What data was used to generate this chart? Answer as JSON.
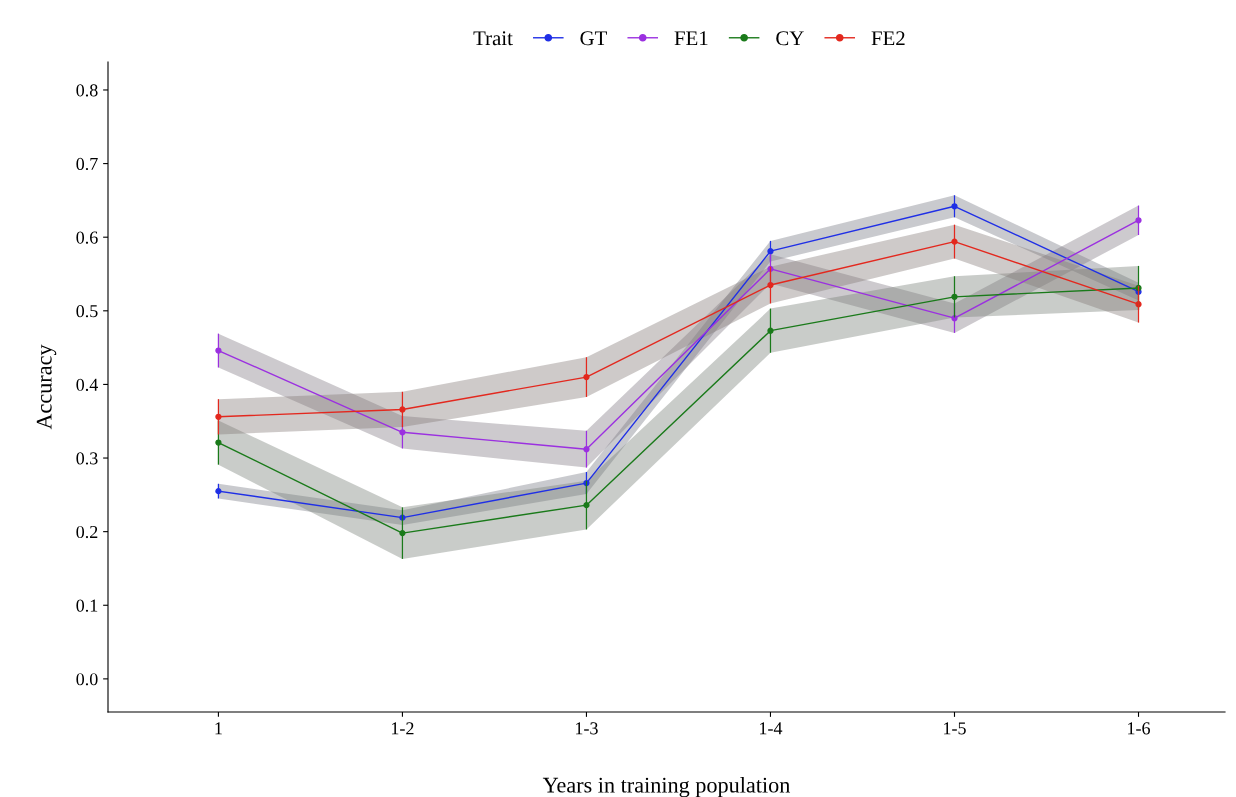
{
  "chart_data": {
    "type": "line",
    "xlabel": "Years in training population",
    "ylabel": "Accuracy",
    "legend_title": "Trait",
    "legend": "top",
    "categories": [
      "1",
      "1-2",
      "1-3",
      "1-4",
      "1-5",
      "1-6"
    ],
    "ylim": [
      -0.045,
      0.838
    ],
    "yticks": [
      {
        "value": 0,
        "label": "0.0"
      },
      0.1,
      0.2,
      0.3,
      0.4,
      0.5,
      0.6,
      0.7,
      0.8
    ],
    "grid": false,
    "marker": "circle",
    "line_style": "solid",
    "series": [
      {
        "name": "GT",
        "color": "#1f2fe6",
        "values": [
          0.255,
          0.219,
          0.266,
          0.581,
          0.642,
          0.526
        ],
        "errors": [
          0.01,
          null,
          0.015,
          0.014,
          0.015,
          null
        ],
        "lower": [
          0.245,
          0.209,
          0.251,
          0.567,
          0.627,
          0.514
        ],
        "upper": [
          0.265,
          0.229,
          0.281,
          0.595,
          0.657,
          0.538
        ]
      },
      {
        "name": "FE1",
        "color": "#9b30e0",
        "values": [
          0.446,
          0.335,
          0.312,
          0.557,
          0.49,
          0.623
        ],
        "errors": [
          0.023,
          0.022,
          0.025,
          0.02,
          0.02,
          0.02
        ],
        "lower": [
          0.423,
          0.313,
          0.287,
          0.537,
          0.47,
          0.603
        ],
        "upper": [
          0.469,
          0.357,
          0.337,
          0.577,
          0.51,
          0.643
        ]
      },
      {
        "name": "CY",
        "color": "#1a7a1a",
        "values": [
          0.321,
          0.198,
          0.236,
          0.473,
          0.519,
          0.531
        ],
        "errors": [
          0.03,
          0.035,
          0.033,
          0.03,
          0.028,
          0.03
        ],
        "lower": [
          0.291,
          0.163,
          0.203,
          0.443,
          0.491,
          0.501
        ],
        "upper": [
          0.351,
          0.233,
          0.269,
          0.503,
          0.547,
          0.561
        ]
      },
      {
        "name": "FE2",
        "color": "#e3281e",
        "values": [
          0.356,
          0.366,
          0.41,
          0.535,
          0.594,
          0.509
        ],
        "errors": [
          0.024,
          0.024,
          0.027,
          0.025,
          0.023,
          0.025
        ],
        "lower": [
          0.332,
          0.342,
          0.383,
          0.51,
          0.571,
          0.484
        ],
        "upper": [
          0.38,
          0.39,
          0.437,
          0.56,
          0.617,
          0.534
        ]
      }
    ]
  }
}
